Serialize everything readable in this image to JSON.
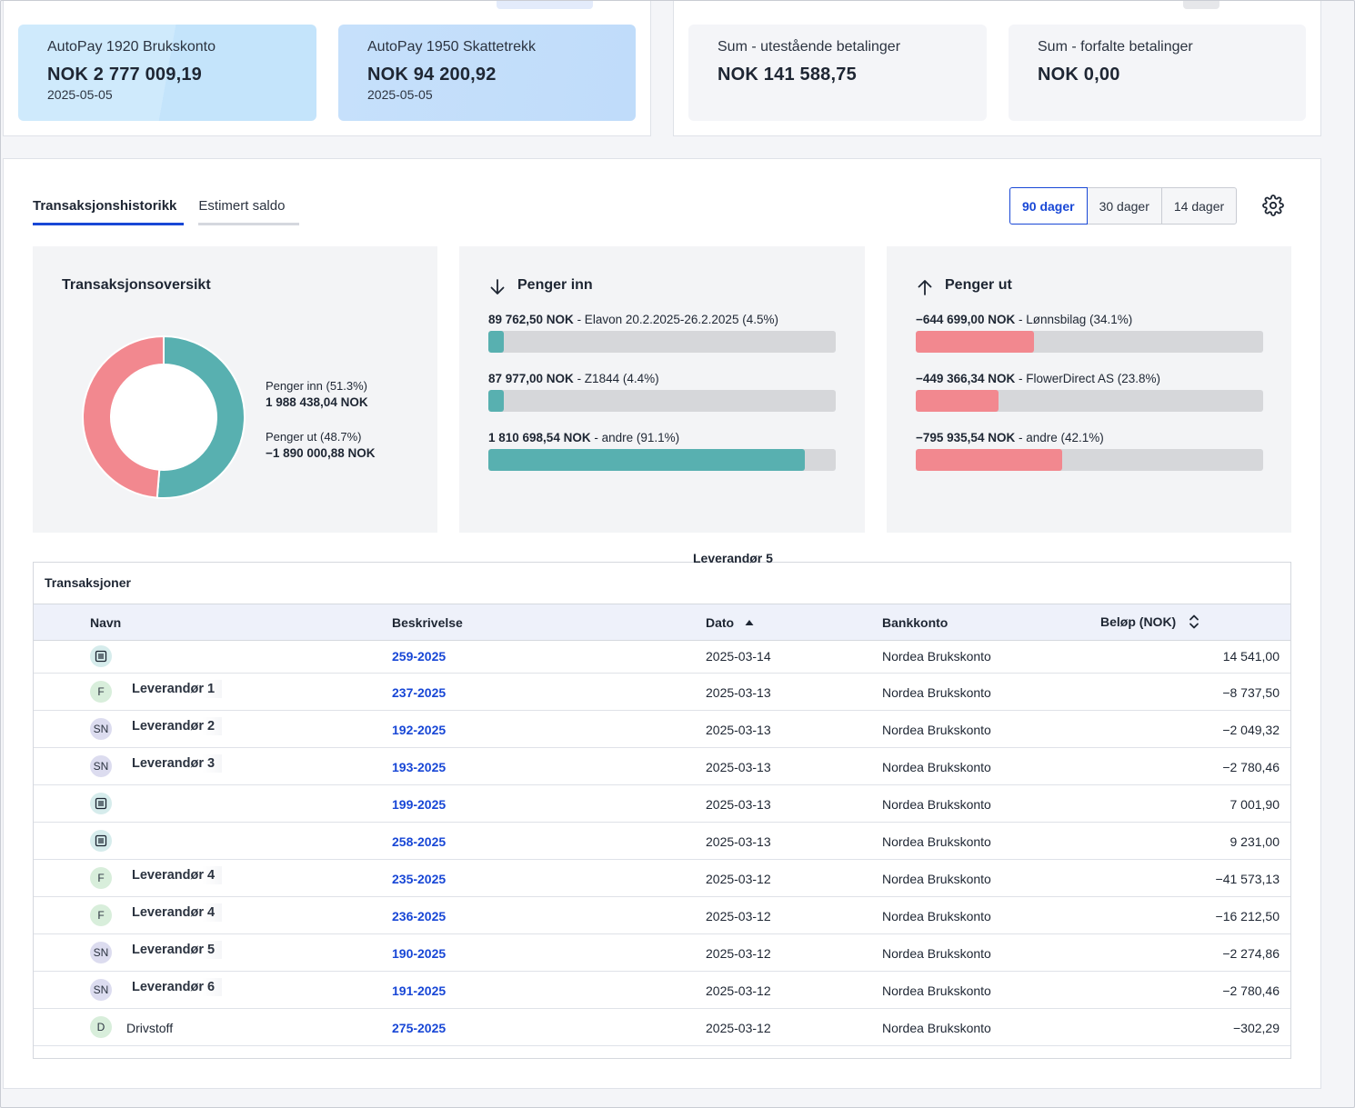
{
  "balances": [
    {
      "label": "AutoPay 1920 Brukskonto",
      "amount": "NOK 2 777 009,19",
      "date": "2025-05-05"
    },
    {
      "label": "AutoPay 1950 Skattetrekk",
      "amount": "NOK 94 200,92",
      "date": "2025-05-05"
    }
  ],
  "sums": [
    {
      "label": "Sum - utestående betalinger",
      "amount": "NOK 141 588,75"
    },
    {
      "label": "Sum - forfalte betalinger",
      "amount": "NOK 0,00"
    }
  ],
  "tabs": [
    {
      "label": "Transaksjonshistorikk",
      "active": true
    },
    {
      "label": "Estimert saldo",
      "active": false
    }
  ],
  "ranges": [
    {
      "label": "90 dager",
      "active": true
    },
    {
      "label": "30 dager",
      "active": false
    },
    {
      "label": "14 dager",
      "active": false
    }
  ],
  "settings_icon": "gear-icon",
  "overview": {
    "title": "Transaksjonsoversikt",
    "in_label": "Penger inn (51.3%)",
    "in_amount": "1 988 438,04 NOK",
    "out_label": "Penger ut (48.7%)",
    "out_amount": "−1 890 000,88 NOK",
    "in_share": 51.3,
    "out_share": 48.7,
    "colors": {
      "in": "#58b0b0",
      "out": "#f2888f"
    }
  },
  "money_in": {
    "title": "Penger inn",
    "icon": "arrow-down-icon",
    "items": [
      {
        "amount": "89 762,50 NOK",
        "rest": " - Elavon 20.2.2025-26.2.2025 (4.5%)",
        "pct": 4.5
      },
      {
        "amount": "87 977,00 NOK",
        "rest": " - Z1844 (4.4%)",
        "pct": 4.4
      },
      {
        "amount": "1 810 698,54 NOK",
        "rest": " - andre (91.1%)",
        "pct": 91.1
      }
    ]
  },
  "money_out": {
    "title": "Penger ut",
    "icon": "arrow-up-icon",
    "items": [
      {
        "amount": "−644 699,00 NOK",
        "rest": " - Lønnsbilag (34.1%)",
        "pct": 34.1
      },
      {
        "amount": "−449 366,34 NOK",
        "rest": " - FlowerDirect AS (23.8%)",
        "pct": 23.8
      },
      {
        "amount": "−795 935,54 NOK",
        "rest": " - andre (42.1%)",
        "pct": 42.1
      }
    ]
  },
  "floating_label": "Leverandør 5",
  "table": {
    "title": "Transaksjoner",
    "headers": {
      "navn": "Navn",
      "beskrivelse": "Beskrivelse",
      "dato": "Dato",
      "bankkonto": "Bankkonto",
      "belop": "Beløp (NOK)"
    },
    "rows": [
      {
        "avatar": "doc",
        "name": "",
        "desc": "259-2025",
        "date": "2025-03-14",
        "bank": "Nordea Brukskonto",
        "amount": "14 541,00"
      },
      {
        "avatar": "F",
        "name": "Leverandør 1",
        "desc": "237-2025",
        "date": "2025-03-13",
        "bank": "Nordea Brukskonto",
        "amount": "−8 737,50"
      },
      {
        "avatar": "SN",
        "name": "Leverandør 2",
        "desc": "192-2025",
        "date": "2025-03-13",
        "bank": "Nordea Brukskonto",
        "amount": "−2 049,32"
      },
      {
        "avatar": "SN",
        "name": "Leverandør 3",
        "desc": "193-2025",
        "date": "2025-03-13",
        "bank": "Nordea Brukskonto",
        "amount": "−2 780,46"
      },
      {
        "avatar": "doc",
        "name": "",
        "desc": "199-2025",
        "date": "2025-03-13",
        "bank": "Nordea Brukskonto",
        "amount": "7 001,90"
      },
      {
        "avatar": "doc",
        "name": "",
        "desc": "258-2025",
        "date": "2025-03-13",
        "bank": "Nordea Brukskonto",
        "amount": "9 231,00"
      },
      {
        "avatar": "F",
        "name": "Leverandør 4",
        "desc": "235-2025",
        "date": "2025-03-12",
        "bank": "Nordea Brukskonto",
        "amount": "−41 573,13"
      },
      {
        "avatar": "F",
        "name": "Leverandør 4",
        "desc": "236-2025",
        "date": "2025-03-12",
        "bank": "Nordea Brukskonto",
        "amount": "−16 212,50"
      },
      {
        "avatar": "SN",
        "name": "Leverandør 5",
        "desc": "190-2025",
        "date": "2025-03-12",
        "bank": "Nordea Brukskonto",
        "amount": "−2 274,86"
      },
      {
        "avatar": "SN",
        "name": "Leverandør 6",
        "desc": "191-2025",
        "date": "2025-03-12",
        "bank": "Nordea Brukskonto",
        "amount": "−2 780,46"
      },
      {
        "avatar": "D",
        "name": "Drivstoff",
        "plain": true,
        "desc": "275-2025",
        "date": "2025-03-12",
        "bank": "Nordea Brukskonto",
        "amount": "−302,29"
      }
    ]
  }
}
